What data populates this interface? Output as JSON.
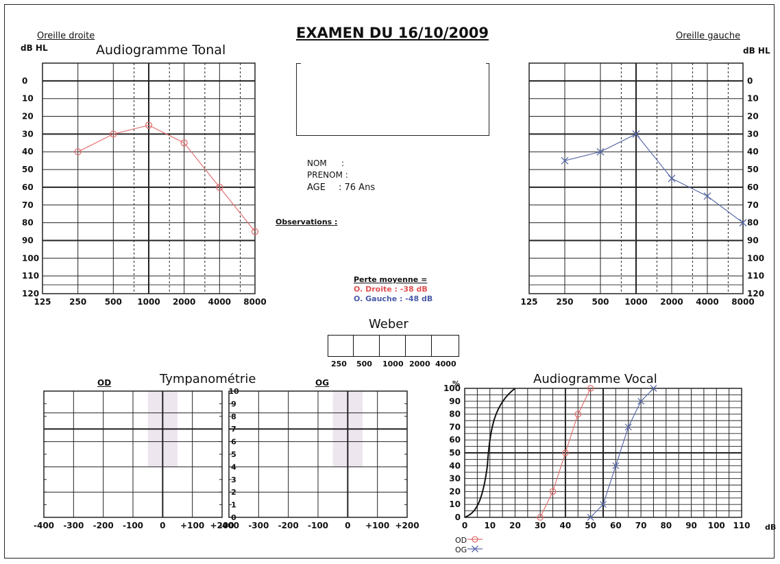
{
  "header": {
    "title": "EXAMEN DU 16/10/2009",
    "oreille_droite": "Oreille droite",
    "oreille_gauche": "Oreille gauche",
    "tonal_title": "Audiogramme Tonal",
    "unit_left": "dB HL",
    "unit_right": "dB HL"
  },
  "patient": {
    "nom_label": "NOM",
    "nom_sep": ":",
    "prenom_label": "PRENOM :",
    "age_label": "AGE",
    "age_value": ": 76 Ans",
    "observations_label": "Observations :"
  },
  "perte": {
    "title": "Perte moyenne =",
    "od": "O. Droite  : -38 dB",
    "og": "O. Gauche : -48 dB"
  },
  "weber": {
    "title": "Weber",
    "freqs": [
      "250",
      "500",
      "1000",
      "2000",
      "4000"
    ]
  },
  "tympano": {
    "title": "Tympanométrie",
    "od_label": "OD",
    "og_label": "OG",
    "y_ticks": [
      "10",
      "9",
      "8",
      "7",
      "6",
      "5",
      "4",
      "3",
      "2",
      "1",
      "0"
    ],
    "x_ticks": [
      "-400",
      "-300",
      "-200",
      "-100",
      "0",
      "+100",
      "+200"
    ]
  },
  "vocal": {
    "title": "Audiogramme Vocal",
    "y_unit": "%",
    "x_unit": "dB",
    "legend_od": "OD",
    "legend_og": "OG"
  },
  "colors": {
    "od": "#e07070",
    "og": "#5a6aaa",
    "od_text": "#e05050",
    "og_text": "#4a5aa8",
    "grid": "#222222",
    "shade": "#ede6ef"
  },
  "chart_data": [
    {
      "type": "line",
      "title": "Audiogramme Tonal",
      "subtitle": "Oreille droite",
      "ylabel": "dB HL",
      "x_scale": "log2",
      "x_ticks": [
        "125",
        "250",
        "500",
        "1000",
        "2000",
        "4000",
        "8000"
      ],
      "y_ticks": [
        "0",
        "10",
        "20",
        "30",
        "40",
        "50",
        "60",
        "70",
        "80",
        "90",
        "100",
        "110",
        "120"
      ],
      "ylim": [
        0,
        120
      ],
      "y_inverted": true,
      "series": [
        {
          "marker": "circle",
          "x": [
            250,
            500,
            1000,
            2000,
            4000,
            8000
          ],
          "y": [
            40,
            30,
            25,
            35,
            60,
            85
          ]
        }
      ]
    },
    {
      "type": "line",
      "title": "",
      "subtitle": "Oreille gauche",
      "ylabel": "dB HL",
      "x_scale": "log2",
      "x_ticks": [
        "125",
        "250",
        "500",
        "1000",
        "2000",
        "4000",
        "8000"
      ],
      "y_ticks": [
        "0",
        "10",
        "20",
        "30",
        "40",
        "50",
        "60",
        "70",
        "80",
        "90",
        "100",
        "110",
        "120"
      ],
      "ylim": [
        0,
        120
      ],
      "y_inverted": true,
      "series": [
        {
          "marker": "cross",
          "x": [
            250,
            500,
            1000,
            2000,
            4000,
            8000
          ],
          "y": [
            45,
            40,
            30,
            55,
            65,
            80
          ]
        }
      ]
    },
    {
      "type": "line",
      "title": "Audiogramme Vocal",
      "xlabel": "dB",
      "ylabel": "%",
      "xlim": [
        0,
        110
      ],
      "ylim": [
        0,
        100
      ],
      "x_ticks": [
        "0",
        "10",
        "20",
        "30",
        "40",
        "50",
        "60",
        "70",
        "80",
        "90",
        "100",
        "110"
      ],
      "y_ticks": [
        "0",
        "10",
        "20",
        "30",
        "40",
        "50",
        "60",
        "70",
        "80",
        "90",
        "100"
      ],
      "series": [
        {
          "name": "OD",
          "marker": "circle",
          "x": [
            30,
            35,
            40,
            45,
            50
          ],
          "y": [
            0,
            20,
            50,
            80,
            100
          ]
        },
        {
          "name": "OG",
          "marker": "cross",
          "x": [
            50,
            55,
            60,
            65,
            70,
            75
          ],
          "y": [
            0,
            10,
            40,
            70,
            90,
            100
          ]
        }
      ]
    }
  ]
}
